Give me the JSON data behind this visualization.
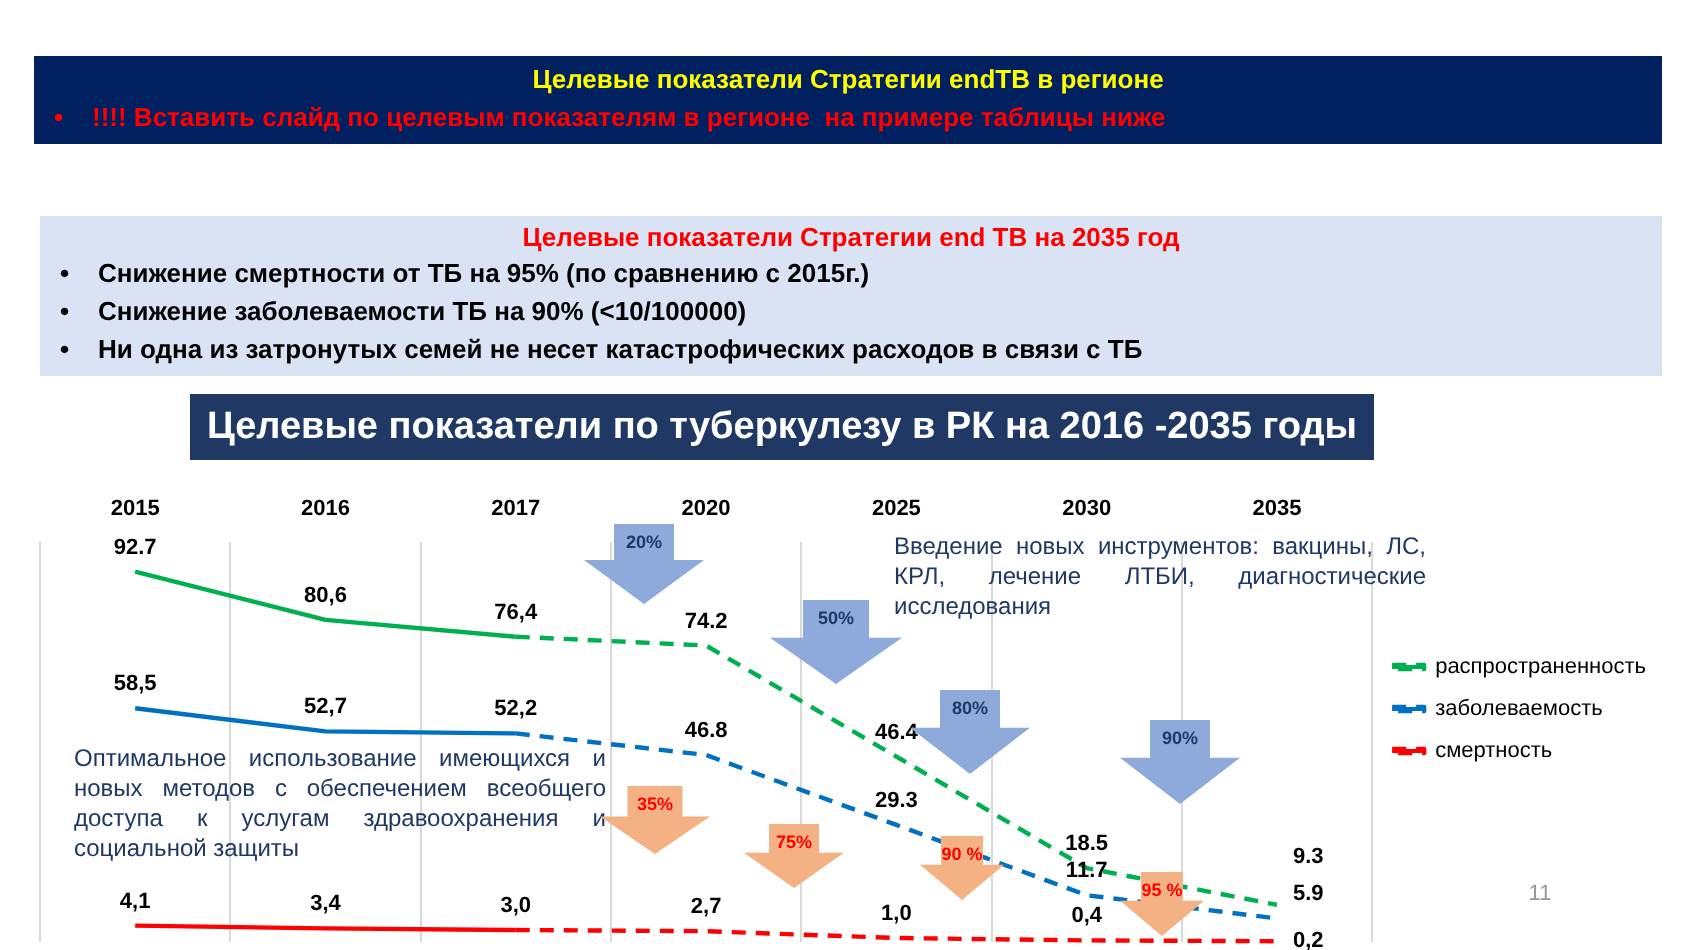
{
  "chart_data": {
    "type": "line",
    "title": "Целевые показатели по туберкулезу в РК на 2016 -2035 годы",
    "categories": [
      "2015",
      "2016",
      "2017",
      "2020",
      "2025",
      "2030",
      "2035"
    ],
    "series": [
      {
        "color": "#00b050",
        "line_style": "solid",
        "values": [
          92.7,
          80.6,
          76.4,
          null,
          null,
          null,
          null
        ],
        "value_labels": [
          "92.7",
          "80,6",
          "76,4",
          null,
          null,
          null,
          null
        ]
      },
      {
        "name": "распространенность",
        "color": "#00b050",
        "line_style": "dashed",
        "values": [
          null,
          null,
          76.4,
          74.2,
          46.4,
          18.5,
          9.3
        ],
        "value_labels": [
          null,
          null,
          null,
          "74.2",
          "46.4",
          "18.5",
          "9.3"
        ]
      },
      {
        "color": "#0070c0",
        "line_style": "solid",
        "values": [
          58.5,
          52.7,
          52.2,
          null,
          null,
          null,
          null
        ],
        "value_labels": [
          "58,5",
          "52,7",
          "52,2",
          null,
          null,
          null,
          null
        ]
      },
      {
        "name": "заболеваемость",
        "color": "#0070c0",
        "line_style": "dashed",
        "values": [
          null,
          null,
          52.2,
          46.8,
          29.3,
          11.7,
          5.9
        ],
        "value_labels": [
          null,
          null,
          null,
          "46.8",
          "29.3",
          "11.7",
          "5.9"
        ]
      },
      {
        "color": "#ff0000",
        "line_style": "solid",
        "values": [
          4.1,
          3.4,
          3.0,
          null,
          null,
          null,
          null
        ],
        "value_labels": [
          "4,1",
          "3,4",
          "3,0",
          null,
          null,
          null,
          null
        ]
      },
      {
        "name": "смертность",
        "color": "#ff0000",
        "line_style": "dashed",
        "values": [
          null,
          null,
          3.0,
          2.7,
          1.0,
          0.4,
          0.2
        ],
        "value_labels": [
          null,
          null,
          null,
          "2,7",
          "1,0",
          "0,4",
          "0,2"
        ]
      }
    ],
    "legend": "right",
    "grid": "x",
    "tick_labels": "x",
    "marker": "none",
    "annotations": [
      "Целевые показатели Стратегии endTB в регионе",
      "•    !!!! Вставить слайд по целевым показателям в регионе  на примере таблицы ниже",
      "Целевые показатели Стратегии end TB на 2035 год",
      "•    Снижение смертности от ТБ на 95% (по сравнению с 2015г.)",
      "•    Снижение заболеваемости ТБ на 90% (<10/100000)",
      "•    Ни одна из затронутых семей не несет катастрофических расходов в связи с ТБ",
      "Оптимальное использование имеющихся и новых методов с обеспечением всеобщего доступа к услугам здравоохранения и социальной защиты",
      "Введение новых инструментов: вакцины, ЛС, КРЛ, лечение ЛТБИ, диагностические исследования",
      "20%",
      "50%",
      "80%",
      "90%",
      "35%",
      "75%",
      "90 %",
      "95 %",
      "11"
    ]
  }
}
